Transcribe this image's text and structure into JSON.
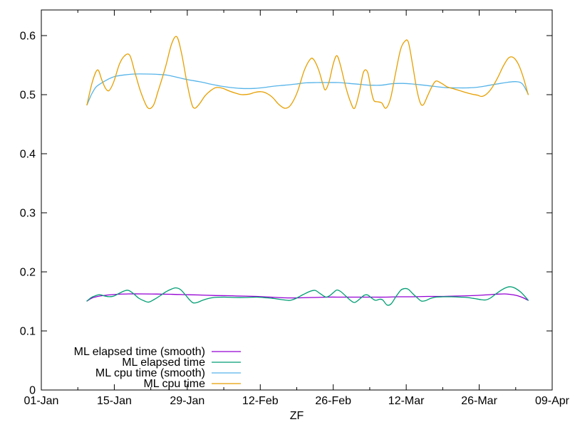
{
  "chart_data": {
    "type": "line",
    "title": "",
    "xlabel": "ZF",
    "ylabel": "",
    "grid": false,
    "legend_position": "bottom-left-inside",
    "x_axis": {
      "tick_labels": [
        "01-Jan",
        "15-Jan",
        "29-Jan",
        "12-Feb",
        "26-Feb",
        "12-Mar",
        "26-Mar",
        "09-Apr"
      ],
      "tick_days": [
        0,
        14,
        28,
        42,
        56,
        70,
        84,
        98
      ],
      "minor_tick_days": [
        7,
        21,
        35,
        49,
        63,
        77,
        91
      ],
      "range_days": [
        0,
        98
      ]
    },
    "y_axis": {
      "tick_labels": [
        "0",
        "0.1",
        "0.2",
        "0.3",
        "0.4",
        "0.5",
        "0.6"
      ],
      "tick_values": [
        0,
        0.1,
        0.2,
        0.3,
        0.4,
        0.5,
        0.6
      ],
      "range": [
        0,
        0.6434
      ]
    },
    "series": [
      {
        "name": "ML elapsed time (smooth)",
        "slug": "ml-elapsed-time-smooth",
        "color": "#9400d3",
        "points": [
          [
            8.75,
            0.1506
          ],
          [
            9.8,
            0.156
          ],
          [
            11.2,
            0.159
          ],
          [
            12.8,
            0.1608
          ],
          [
            14.6,
            0.162
          ],
          [
            16.7,
            0.1627
          ],
          [
            19.4,
            0.1627
          ],
          [
            22.1,
            0.1624
          ],
          [
            24.9,
            0.162
          ],
          [
            27.6,
            0.1614
          ],
          [
            30.3,
            0.1608
          ],
          [
            33.1,
            0.16
          ],
          [
            35.8,
            0.1596
          ],
          [
            38.5,
            0.159
          ],
          [
            41.3,
            0.1584
          ],
          [
            44.0,
            0.1572
          ],
          [
            46.7,
            0.156
          ],
          [
            49.5,
            0.156
          ],
          [
            52.2,
            0.1566
          ],
          [
            54.9,
            0.1572
          ],
          [
            57.7,
            0.1572
          ],
          [
            60.4,
            0.1572
          ],
          [
            63.1,
            0.1572
          ],
          [
            65.9,
            0.1572
          ],
          [
            68.6,
            0.1578
          ],
          [
            71.3,
            0.1578
          ],
          [
            74.1,
            0.1584
          ],
          [
            76.8,
            0.1584
          ],
          [
            79.5,
            0.159
          ],
          [
            82.2,
            0.1596
          ],
          [
            85.0,
            0.1608
          ],
          [
            87.0,
            0.162
          ],
          [
            88.8,
            0.1627
          ],
          [
            89.8,
            0.162
          ],
          [
            91.2,
            0.16
          ],
          [
            92.3,
            0.1566
          ],
          [
            93.4,
            0.1518
          ]
        ]
      },
      {
        "name": "ML elapsed time",
        "slug": "ml-elapsed-time",
        "color": "#009e73",
        "points": [
          [
            8.75,
            0.1506
          ],
          [
            9.6,
            0.1566
          ],
          [
            10.4,
            0.1596
          ],
          [
            11.2,
            0.1614
          ],
          [
            12.2,
            0.159
          ],
          [
            13.0,
            0.158
          ],
          [
            13.9,
            0.159
          ],
          [
            15.0,
            0.164
          ],
          [
            16.0,
            0.168
          ],
          [
            16.7,
            0.1687
          ],
          [
            17.6,
            0.1638
          ],
          [
            18.7,
            0.1554
          ],
          [
            19.8,
            0.1506
          ],
          [
            20.6,
            0.1488
          ],
          [
            21.6,
            0.153
          ],
          [
            22.7,
            0.159
          ],
          [
            23.9,
            0.1663
          ],
          [
            25.0,
            0.171
          ],
          [
            25.8,
            0.1729
          ],
          [
            26.7,
            0.17
          ],
          [
            27.6,
            0.1614
          ],
          [
            28.4,
            0.153
          ],
          [
            29.1,
            0.1476
          ],
          [
            29.9,
            0.1482
          ],
          [
            30.9,
            0.1518
          ],
          [
            32.0,
            0.1548
          ],
          [
            33.1,
            0.1566
          ],
          [
            35.1,
            0.1572
          ],
          [
            37.2,
            0.1566
          ],
          [
            39.2,
            0.1566
          ],
          [
            41.3,
            0.1572
          ],
          [
            43.3,
            0.156
          ],
          [
            44.7,
            0.1548
          ],
          [
            46.1,
            0.153
          ],
          [
            47.2,
            0.1518
          ],
          [
            47.8,
            0.1518
          ],
          [
            48.8,
            0.1548
          ],
          [
            50.2,
            0.1614
          ],
          [
            51.5,
            0.1669
          ],
          [
            52.5,
            0.1687
          ],
          [
            53.4,
            0.1638
          ],
          [
            54.3,
            0.1584
          ],
          [
            54.7,
            0.1572
          ],
          [
            55.4,
            0.1602
          ],
          [
            56.2,
            0.1663
          ],
          [
            56.7,
            0.1693
          ],
          [
            57.4,
            0.1669
          ],
          [
            58.4,
            0.159
          ],
          [
            59.3,
            0.1518
          ],
          [
            60.1,
            0.1482
          ],
          [
            61.1,
            0.1542
          ],
          [
            61.9,
            0.1602
          ],
          [
            62.6,
            0.1608
          ],
          [
            63.4,
            0.1554
          ],
          [
            64.1,
            0.1518
          ],
          [
            64.9,
            0.1536
          ],
          [
            65.5,
            0.1524
          ],
          [
            66.3,
            0.144
          ],
          [
            67.1,
            0.1458
          ],
          [
            68.1,
            0.159
          ],
          [
            69.0,
            0.1693
          ],
          [
            69.7,
            0.1717
          ],
          [
            70.4,
            0.1705
          ],
          [
            71.3,
            0.1627
          ],
          [
            72.2,
            0.1554
          ],
          [
            72.9,
            0.1506
          ],
          [
            73.7,
            0.1512
          ],
          [
            74.6,
            0.1548
          ],
          [
            75.7,
            0.1572
          ],
          [
            77.1,
            0.1578
          ],
          [
            78.7,
            0.1578
          ],
          [
            80.4,
            0.1572
          ],
          [
            81.7,
            0.1566
          ],
          [
            83.1,
            0.1548
          ],
          [
            84.3,
            0.153
          ],
          [
            85.2,
            0.1524
          ],
          [
            86.1,
            0.1554
          ],
          [
            87.2,
            0.1627
          ],
          [
            88.4,
            0.17
          ],
          [
            89.4,
            0.1741
          ],
          [
            90.1,
            0.1747
          ],
          [
            90.9,
            0.1723
          ],
          [
            91.9,
            0.1663
          ],
          [
            92.7,
            0.159
          ],
          [
            93.4,
            0.1518
          ]
        ]
      },
      {
        "name": "ML cpu time (smooth)",
        "slug": "ml-cpu-time-smooth",
        "color": "#56b4e9",
        "points": [
          [
            8.75,
            0.4825
          ],
          [
            9.6,
            0.5
          ],
          [
            10.5,
            0.513
          ],
          [
            11.6,
            0.52
          ],
          [
            12.8,
            0.526
          ],
          [
            14.2,
            0.531
          ],
          [
            16.0,
            0.5335
          ],
          [
            18.0,
            0.535
          ],
          [
            20.1,
            0.535
          ],
          [
            22.1,
            0.5345
          ],
          [
            24.2,
            0.533
          ],
          [
            26.2,
            0.529
          ],
          [
            28.3,
            0.525
          ],
          [
            30.3,
            0.522
          ],
          [
            32.4,
            0.518
          ],
          [
            34.4,
            0.5145
          ],
          [
            36.5,
            0.512
          ],
          [
            38.5,
            0.5105
          ],
          [
            40.6,
            0.5105
          ],
          [
            42.6,
            0.512
          ],
          [
            44.7,
            0.5145
          ],
          [
            46.7,
            0.516
          ],
          [
            48.8,
            0.518
          ],
          [
            50.8,
            0.52
          ],
          [
            52.9,
            0.5205
          ],
          [
            54.9,
            0.5205
          ],
          [
            57.0,
            0.5205
          ],
          [
            59.0,
            0.519
          ],
          [
            61.1,
            0.5175
          ],
          [
            63.1,
            0.516
          ],
          [
            65.2,
            0.516
          ],
          [
            67.2,
            0.5185
          ],
          [
            69.3,
            0.519
          ],
          [
            71.3,
            0.518
          ],
          [
            73.4,
            0.516
          ],
          [
            75.4,
            0.514
          ],
          [
            77.5,
            0.512
          ],
          [
            79.5,
            0.5115
          ],
          [
            81.6,
            0.5115
          ],
          [
            83.6,
            0.5125
          ],
          [
            85.7,
            0.5155
          ],
          [
            87.7,
            0.5185
          ],
          [
            89.5,
            0.521
          ],
          [
            91.2,
            0.522
          ],
          [
            92.3,
            0.518
          ],
          [
            93.4,
            0.501
          ]
        ]
      },
      {
        "name": "ML cpu time",
        "slug": "ml-cpu-time",
        "color": "#e69f00",
        "points": [
          [
            8.75,
            0.4825
          ],
          [
            9.8,
            0.522
          ],
          [
            10.8,
            0.542
          ],
          [
            11.6,
            0.525
          ],
          [
            12.3,
            0.511
          ],
          [
            13.0,
            0.507
          ],
          [
            13.9,
            0.522
          ],
          [
            15.0,
            0.552
          ],
          [
            16.0,
            0.566
          ],
          [
            17.0,
            0.566
          ],
          [
            18.0,
            0.536
          ],
          [
            19.1,
            0.504
          ],
          [
            20.4,
            0.478
          ],
          [
            21.5,
            0.482
          ],
          [
            22.4,
            0.506
          ],
          [
            23.8,
            0.546
          ],
          [
            25.0,
            0.586
          ],
          [
            26.0,
            0.598
          ],
          [
            26.9,
            0.57
          ],
          [
            27.9,
            0.522
          ],
          [
            28.8,
            0.486
          ],
          [
            29.4,
            0.477
          ],
          [
            30.3,
            0.484
          ],
          [
            31.4,
            0.498
          ],
          [
            32.5,
            0.507
          ],
          [
            33.5,
            0.512
          ],
          [
            34.7,
            0.511
          ],
          [
            36.1,
            0.506
          ],
          [
            37.5,
            0.502
          ],
          [
            38.5,
            0.5
          ],
          [
            39.9,
            0.501
          ],
          [
            41.0,
            0.504
          ],
          [
            42.2,
            0.505
          ],
          [
            43.3,
            0.502
          ],
          [
            44.4,
            0.495
          ],
          [
            45.5,
            0.484
          ],
          [
            46.7,
            0.477
          ],
          [
            47.8,
            0.482
          ],
          [
            49.1,
            0.504
          ],
          [
            50.4,
            0.54
          ],
          [
            51.5,
            0.559
          ],
          [
            52.2,
            0.56
          ],
          [
            53.2,
            0.542
          ],
          [
            54.0,
            0.518
          ],
          [
            54.5,
            0.508
          ],
          [
            55.2,
            0.522
          ],
          [
            56.0,
            0.552
          ],
          [
            56.7,
            0.566
          ],
          [
            57.4,
            0.549
          ],
          [
            58.4,
            0.513
          ],
          [
            59.3,
            0.488
          ],
          [
            60.1,
            0.477
          ],
          [
            61.0,
            0.504
          ],
          [
            61.8,
            0.538
          ],
          [
            62.6,
            0.538
          ],
          [
            63.3,
            0.506
          ],
          [
            63.8,
            0.49
          ],
          [
            64.5,
            0.488
          ],
          [
            65.3,
            0.486
          ],
          [
            66.1,
            0.477
          ],
          [
            67.0,
            0.494
          ],
          [
            67.9,
            0.534
          ],
          [
            68.9,
            0.576
          ],
          [
            69.7,
            0.59
          ],
          [
            70.4,
            0.589
          ],
          [
            71.2,
            0.552
          ],
          [
            72.0,
            0.51
          ],
          [
            72.7,
            0.486
          ],
          [
            73.3,
            0.483
          ],
          [
            74.1,
            0.498
          ],
          [
            74.9,
            0.513
          ],
          [
            75.7,
            0.523
          ],
          [
            76.8,
            0.519
          ],
          [
            77.9,
            0.513
          ],
          [
            79.1,
            0.51
          ],
          [
            80.2,
            0.507
          ],
          [
            81.3,
            0.504
          ],
          [
            82.6,
            0.501
          ],
          [
            83.7,
            0.499
          ],
          [
            84.5,
            0.497
          ],
          [
            85.4,
            0.501
          ],
          [
            86.4,
            0.511
          ],
          [
            87.5,
            0.528
          ],
          [
            88.6,
            0.548
          ],
          [
            89.5,
            0.561
          ],
          [
            90.2,
            0.564
          ],
          [
            90.9,
            0.56
          ],
          [
            91.7,
            0.548
          ],
          [
            92.5,
            0.528
          ],
          [
            93.4,
            0.5
          ]
        ]
      }
    ],
    "colors": {
      "axis": "#000000",
      "text": "#000000",
      "background": "#ffffff"
    }
  }
}
